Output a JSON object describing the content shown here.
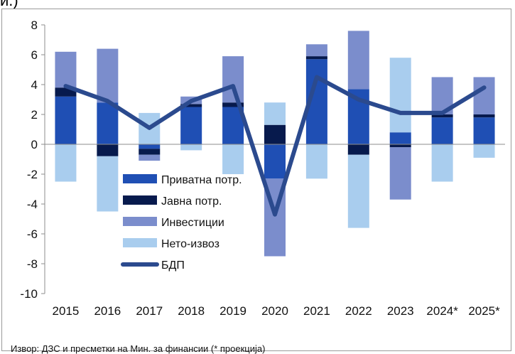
{
  "header_fragment": "и.)",
  "source_note": "Извор: ДЗС и пресметки на Мин. за финансии  (* проекција)",
  "colors": {
    "private": "#1f4fb4",
    "public": "#071a4d",
    "investment": "#7b8dcc",
    "net_export": "#a9cdee",
    "gdp": "#2b4a8e"
  },
  "chart_data": {
    "type": "bar",
    "stacked": true,
    "categories": [
      "2015",
      "2016",
      "2017",
      "2018",
      "2019",
      "2020",
      "2021",
      "2022",
      "2023",
      "2024*",
      "2025*"
    ],
    "ylim": [
      -10,
      8
    ],
    "yticks": [
      8,
      6,
      4,
      2,
      0,
      -2,
      -4,
      -6,
      -8,
      -10
    ],
    "ytick_labels": [
      "8",
      "6",
      "4",
      "2",
      "0",
      "-2",
      "-4",
      "-6",
      "-8",
      "-10"
    ],
    "grid": false,
    "legend_position": "lower-center",
    "series": [
      {
        "name": "Приватна потр.",
        "key": "private",
        "values": [
          3.2,
          2.8,
          -0.3,
          2.5,
          2.5,
          -2.3,
          5.7,
          3.7,
          0.8,
          1.8,
          1.8
        ]
      },
      {
        "name": "Јавна потр.",
        "key": "public",
        "values": [
          0.6,
          -0.8,
          -0.4,
          0.2,
          0.3,
          1.3,
          0.2,
          -0.7,
          -0.2,
          0.2,
          0.2
        ]
      },
      {
        "name": "Инвестиции",
        "key": "investment",
        "values": [
          2.4,
          3.6,
          -0.4,
          0.5,
          3.1,
          -5.2,
          0.8,
          3.9,
          -3.5,
          2.5,
          2.5
        ]
      },
      {
        "name": "Нето-извоз",
        "key": "net_export",
        "values": [
          -2.5,
          -3.7,
          2.1,
          -0.4,
          -2.0,
          1.5,
          -2.3,
          -4.9,
          5.0,
          -2.5,
          -0.9
        ]
      }
    ],
    "line": {
      "name": "БДП",
      "key": "gdp",
      "values": [
        3.9,
        2.9,
        1.1,
        2.9,
        3.9,
        -4.7,
        4.5,
        3.0,
        2.1,
        2.1,
        3.8
      ]
    }
  }
}
